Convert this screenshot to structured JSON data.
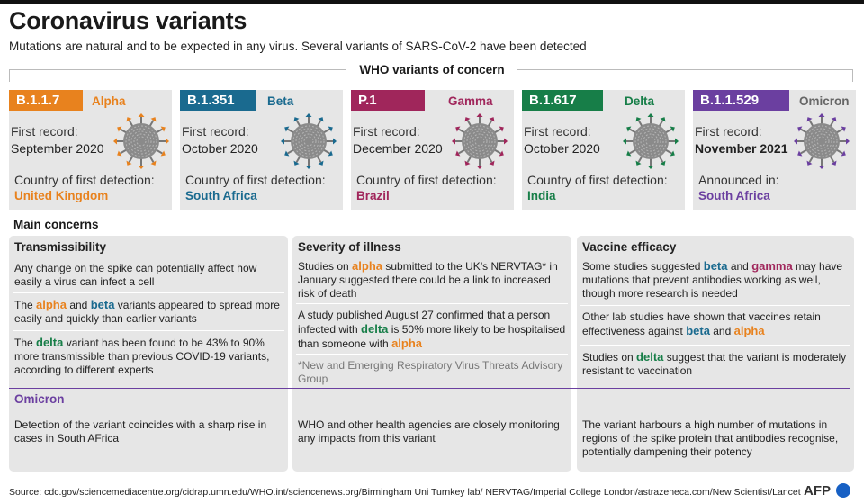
{
  "title": "Coronavirus variants",
  "subtitle": "Mutations are natural and to be expected in any virus. Several variants of SARS-CoV-2 have been detected",
  "who_label": "WHO variants of concern",
  "first_record_label": "First record:",
  "country_label": "Country of first detection:",
  "variants": [
    {
      "code": "B.1.1.7",
      "greek": "Alpha",
      "color": "#e8821e",
      "first_record": "September 2020",
      "place_label": "Country of first detection:",
      "place": "United Kingdom"
    },
    {
      "code": "B.1.351",
      "greek": "Beta",
      "color": "#1a6a8f",
      "first_record": "October 2020",
      "place_label": "Country of first detection:",
      "place": "South Africa"
    },
    {
      "code": "P.1",
      "greek": "Gamma",
      "color": "#a0265b",
      "first_record": "December 2020",
      "place_label": "Country of first detection:",
      "place": "Brazil"
    },
    {
      "code": "B.1.617",
      "greek": "Delta",
      "color": "#177e48",
      "first_record": "October 2020",
      "place_label": "Country of first detection:",
      "place": "India"
    },
    {
      "code": "B.1.1.529",
      "greek": "Omicron",
      "color": "#6b3fa0",
      "first_record": "November 2021",
      "place_label": "Announced in:",
      "place": "South Africa"
    }
  ],
  "main_concerns": "Main concerns",
  "panels": {
    "transmissibility": {
      "title": "Transmissibility",
      "p1": "Any change on the spike can potentially affect how easily a virus can infect a cell",
      "p2": [
        "The ",
        "alpha",
        " and ",
        "beta",
        " variants appeared to spread more easily and quickly than earlier variants"
      ],
      "p3": [
        "The ",
        "delta",
        " variant has been found to be 43% to 90% more transmissible than previous COVID-19 variants, according to different experts"
      ],
      "omicron": "Detection of the variant coincides with a sharp rise in cases in South AFrica"
    },
    "severity": {
      "title": "Severity of illness",
      "p1": [
        "Studies on ",
        "alpha",
        " submitted to the UK’s NERVTAG* in January suggested there could be a link to increased risk of death"
      ],
      "p2": [
        "A study published August 27 confirmed that a person infected with ",
        "delta",
        " is 50% more likely to be hospitalised than someone with ",
        "alpha"
      ],
      "footnote": "*New and Emerging Respiratory Virus Threats Advisory Group",
      "omicron": "WHO and other health agencies are closely monitoring any impacts from this variant"
    },
    "vaccine": {
      "title": "Vaccine efficacy",
      "p1": [
        "Some studies suggested ",
        "beta",
        " and ",
        "gamma",
        " may have mutations that prevent antibodies working as well, though more research is needed"
      ],
      "p2": [
        "Other lab studies have shown that vaccines retain effectiveness against ",
        "beta",
        " and ",
        "alpha"
      ],
      "p3": [
        "Studies on ",
        "delta",
        " suggest that the variant is moderately resistant to vaccination"
      ],
      "omicron": "The variant harbours a high number of mutations in regions of the spike protein that antibodies recognise, potentially dampening their potency"
    }
  },
  "omicron_label": "Omicron",
  "source": "Source: cdc.gov/sciencemediacentre.org/cidrap.umn.edu/WHO.int/sciencenews.org/Birmingham Uni Turnkey lab/ NERVTAG/Imperial College London/astrazeneca.com/New Scientist/Lancet",
  "logo": "AFP"
}
